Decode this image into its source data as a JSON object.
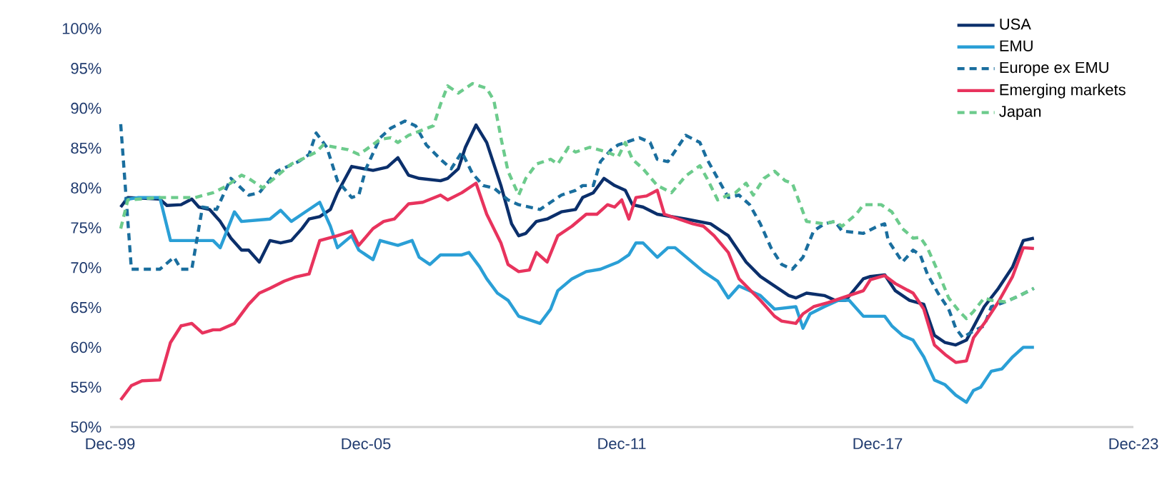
{
  "chart_data": {
    "type": "line",
    "xlim": [
      "1999-12",
      "2023-12"
    ],
    "xticks": [
      {
        "value": "1999-12",
        "label": "Dec-99"
      },
      {
        "value": "2005-12",
        "label": "Dec-05"
      },
      {
        "value": "2011-12",
        "label": "Dec-11"
      },
      {
        "value": "2017-12",
        "label": "Dec-17"
      },
      {
        "value": "2023-12",
        "label": "Dec-23"
      }
    ],
    "ylim": [
      50,
      100
    ],
    "yticks": [
      {
        "value": 50,
        "label": "50%"
      },
      {
        "value": 55,
        "label": "55%"
      },
      {
        "value": 60,
        "label": "60%"
      },
      {
        "value": 65,
        "label": "65%"
      },
      {
        "value": 70,
        "label": "70%"
      },
      {
        "value": 75,
        "label": "75%"
      },
      {
        "value": 80,
        "label": "80%"
      },
      {
        "value": 85,
        "label": "85%"
      },
      {
        "value": 90,
        "label": "90%"
      },
      {
        "value": 95,
        "label": "95%"
      },
      {
        "value": 100,
        "label": "100%"
      }
    ],
    "grid": false,
    "legend": "top right",
    "series": [
      {
        "name": "USA",
        "color": "#0b2f6b",
        "line_style": "solid",
        "x": [
          "2000-03",
          "2000-05",
          "2001-02",
          "2001-04",
          "2001-08",
          "2001-11",
          "2002-01",
          "2002-04",
          "2002-07",
          "2002-10",
          "2003-01",
          "2003-03",
          "2003-06",
          "2003-09",
          "2003-12",
          "2004-03",
          "2004-06",
          "2004-08",
          "2004-11",
          "2005-02",
          "2005-04",
          "2005-08",
          "2006-02",
          "2006-06",
          "2006-09",
          "2006-12",
          "2007-03",
          "2007-09",
          "2007-11",
          "2008-02",
          "2008-04",
          "2008-07",
          "2008-10",
          "2009-02",
          "2009-05",
          "2009-07",
          "2009-09",
          "2009-12",
          "2010-03",
          "2010-07",
          "2010-11",
          "2011-01",
          "2011-04",
          "2011-07",
          "2011-10",
          "2012-01",
          "2012-03",
          "2012-06",
          "2012-10",
          "2013-06",
          "2014-01",
          "2014-06",
          "2014-11",
          "2015-03",
          "2015-07",
          "2015-11",
          "2016-01",
          "2016-04",
          "2016-09",
          "2016-12",
          "2017-03",
          "2017-08",
          "2017-10",
          "2018-02",
          "2018-05",
          "2018-09",
          "2019-01",
          "2019-04",
          "2019-07",
          "2019-10",
          "2020-01",
          "2020-06",
          "2020-10",
          "2021-02",
          "2021-05",
          "2021-08"
        ],
        "values": [
          77.6,
          78.8,
          78.6,
          77.8,
          77.9,
          78.6,
          77.6,
          77.3,
          75.8,
          73.7,
          72.2,
          72.2,
          70.7,
          73.4,
          73.1,
          73.4,
          74.9,
          76.1,
          76.4,
          77.3,
          79.4,
          82.7,
          82.2,
          82.6,
          83.8,
          81.6,
          81.2,
          80.9,
          81.2,
          82.4,
          85.1,
          87.9,
          85.7,
          80.3,
          75.5,
          74.0,
          74.3,
          75.8,
          76.1,
          77.0,
          77.3,
          78.8,
          79.4,
          81.2,
          80.3,
          79.7,
          77.9,
          77.6,
          76.7,
          76.1,
          75.5,
          74.0,
          70.7,
          68.9,
          67.7,
          66.5,
          66.2,
          66.8,
          66.5,
          65.9,
          65.9,
          68.6,
          68.9,
          69.1,
          67.1,
          65.9,
          65.4,
          61.5,
          60.6,
          60.3,
          60.9,
          65.1,
          67.4,
          70.1,
          73.4,
          73.7
        ]
      },
      {
        "name": "EMU",
        "color": "#2a9fd6",
        "line_style": "solid",
        "x": [
          "2000-04",
          "2000-08",
          "2001-02",
          "2001-05",
          "2002-05",
          "2002-07",
          "2002-11",
          "2003-01",
          "2003-09",
          "2003-12",
          "2004-03",
          "2004-06",
          "2004-11",
          "2005-02",
          "2005-04",
          "2005-08",
          "2005-10",
          "2006-02",
          "2006-04",
          "2006-09",
          "2007-01",
          "2007-03",
          "2007-06",
          "2007-09",
          "2008-03",
          "2008-05",
          "2008-08",
          "2008-10",
          "2009-01",
          "2009-04",
          "2009-07",
          "2010-01",
          "2010-04",
          "2010-06",
          "2010-10",
          "2011-02",
          "2011-06",
          "2011-11",
          "2012-02",
          "2012-04",
          "2012-06",
          "2012-10",
          "2013-01",
          "2013-03",
          "2013-07",
          "2013-11",
          "2014-03",
          "2014-06",
          "2014-09",
          "2015-03",
          "2015-07",
          "2016-01",
          "2016-03",
          "2016-05",
          "2016-09",
          "2017-01",
          "2017-04",
          "2017-08",
          "2018-02",
          "2018-04",
          "2018-07",
          "2018-10",
          "2019-01",
          "2019-04",
          "2019-07",
          "2019-10",
          "2020-01",
          "2020-03",
          "2020-05",
          "2020-08",
          "2020-11",
          "2021-02",
          "2021-05",
          "2021-08"
        ],
        "values": [
          78.5,
          78.8,
          78.8,
          73.4,
          73.4,
          72.5,
          77.0,
          75.8,
          76.1,
          77.2,
          75.8,
          76.7,
          78.2,
          75.2,
          72.5,
          74.0,
          72.2,
          71.0,
          73.4,
          72.8,
          73.4,
          71.3,
          70.4,
          71.6,
          71.6,
          71.9,
          70.1,
          68.6,
          66.8,
          65.9,
          63.9,
          63.0,
          64.8,
          67.1,
          68.6,
          69.5,
          69.8,
          70.7,
          71.6,
          73.1,
          73.1,
          71.3,
          72.5,
          72.5,
          71.0,
          69.5,
          68.3,
          66.2,
          67.7,
          66.5,
          64.8,
          65.1,
          62.4,
          64.2,
          65.1,
          65.9,
          65.9,
          63.9,
          63.9,
          62.7,
          61.5,
          60.9,
          58.8,
          55.9,
          55.3,
          54.0,
          53.1,
          54.6,
          55.0,
          57.0,
          57.3,
          58.8,
          60.0,
          60.0
        ]
      },
      {
        "name": "Europe ex EMU",
        "color": "#1a6e9e",
        "line_style": "dashed",
        "x": [
          "2000-03",
          "2000-06",
          "2001-02",
          "2001-06",
          "2001-08",
          "2001-11",
          "2002-02",
          "2002-06",
          "2002-10",
          "2003-03",
          "2003-06",
          "2003-11",
          "2004-05",
          "2004-08",
          "2004-10",
          "2005-01",
          "2005-04",
          "2005-08",
          "2005-10",
          "2005-12",
          "2006-04",
          "2006-07",
          "2006-11",
          "2007-02",
          "2007-05",
          "2007-09",
          "2007-12",
          "2008-03",
          "2008-06",
          "2008-09",
          "2008-12",
          "2009-04",
          "2009-07",
          "2010-01",
          "2010-04",
          "2010-07",
          "2010-11",
          "2011-01",
          "2011-04",
          "2011-06",
          "2011-09",
          "2011-11",
          "2012-01",
          "2012-05",
          "2012-08",
          "2012-10",
          "2013-01",
          "2013-06",
          "2013-10",
          "2013-12",
          "2014-03",
          "2014-06",
          "2014-09",
          "2014-12",
          "2015-03",
          "2015-06",
          "2015-09",
          "2015-12",
          "2016-03",
          "2016-06",
          "2016-09",
          "2016-12",
          "2017-02",
          "2017-08",
          "2017-12",
          "2018-02",
          "2018-03",
          "2018-07",
          "2018-10",
          "2018-12",
          "2019-02",
          "2019-05",
          "2019-08",
          "2019-10",
          "2019-12",
          "2020-02",
          "2020-06",
          "2020-08",
          "2020-12",
          "2021-04",
          "2021-08"
        ],
        "values": [
          88.0,
          69.8,
          69.8,
          71.3,
          69.8,
          69.8,
          77.6,
          77.3,
          81.2,
          79.1,
          79.4,
          82.1,
          83.3,
          84.2,
          86.9,
          85.1,
          80.9,
          78.8,
          79.1,
          82.4,
          86.3,
          87.5,
          88.4,
          87.8,
          85.4,
          83.6,
          82.4,
          84.5,
          81.8,
          80.3,
          80.0,
          78.5,
          77.9,
          77.3,
          78.2,
          79.1,
          79.7,
          80.3,
          80.3,
          83.3,
          84.8,
          85.4,
          85.7,
          86.3,
          85.7,
          83.6,
          83.3,
          86.6,
          85.7,
          83.6,
          81.2,
          78.8,
          79.1,
          77.9,
          75.5,
          72.5,
          70.4,
          69.8,
          71.3,
          74.6,
          75.5,
          75.8,
          74.6,
          74.3,
          75.2,
          75.5,
          73.4,
          70.7,
          72.2,
          71.6,
          69.2,
          66.8,
          64.8,
          62.4,
          61.2,
          61.8,
          62.7,
          65.1,
          65.7,
          66.5,
          67.4
        ]
      },
      {
        "name": "Emerging markets",
        "color": "#e8335d",
        "line_style": "solid",
        "x": [
          "2000-03",
          "2000-06",
          "2000-09",
          "2001-02",
          "2001-05",
          "2001-08",
          "2001-11",
          "2002-02",
          "2002-05",
          "2002-07",
          "2002-11",
          "2003-03",
          "2003-06",
          "2003-09",
          "2004-01",
          "2004-04",
          "2004-08",
          "2004-11",
          "2005-04",
          "2005-08",
          "2005-10",
          "2006-02",
          "2006-05",
          "2006-08",
          "2006-12",
          "2007-04",
          "2007-09",
          "2007-11",
          "2008-03",
          "2008-07",
          "2008-10",
          "2009-02",
          "2009-04",
          "2009-07",
          "2009-10",
          "2009-12",
          "2010-03",
          "2010-06",
          "2010-10",
          "2011-02",
          "2011-05",
          "2011-08",
          "2011-10",
          "2011-12",
          "2012-02",
          "2012-04",
          "2012-07",
          "2012-10",
          "2012-12",
          "2013-04",
          "2013-08",
          "2013-11",
          "2014-02",
          "2014-06",
          "2014-09",
          "2015-03",
          "2015-07",
          "2015-09",
          "2016-01",
          "2016-03",
          "2016-06",
          "2016-10",
          "2017-02",
          "2017-08",
          "2017-10",
          "2018-02",
          "2018-05",
          "2018-10",
          "2019-01",
          "2019-04",
          "2019-07",
          "2019-10",
          "2020-01",
          "2020-03",
          "2020-06",
          "2020-10",
          "2021-02",
          "2021-05",
          "2021-08"
        ],
        "values": [
          53.4,
          55.2,
          55.8,
          55.9,
          60.6,
          62.7,
          63.0,
          61.8,
          62.2,
          62.2,
          63.0,
          65.4,
          66.8,
          67.4,
          68.3,
          68.8,
          69.2,
          73.4,
          74.0,
          74.6,
          72.8,
          74.9,
          75.8,
          76.1,
          78.0,
          78.2,
          79.1,
          78.5,
          79.4,
          80.6,
          76.7,
          73.1,
          70.4,
          69.5,
          69.7,
          71.9,
          70.7,
          74.0,
          75.2,
          76.7,
          76.7,
          77.9,
          77.6,
          78.5,
          76.1,
          78.8,
          79.0,
          79.7,
          76.7,
          76.1,
          75.5,
          75.2,
          74.0,
          71.9,
          68.6,
          65.9,
          63.9,
          63.3,
          63.0,
          64.2,
          65.1,
          65.6,
          66.2,
          67.1,
          68.5,
          69.0,
          68.0,
          66.8,
          64.8,
          60.3,
          59.1,
          58.1,
          58.3,
          61.2,
          63.0,
          65.7,
          68.9,
          72.5,
          72.4
        ]
      },
      {
        "name": "Japan",
        "color": "#6ccb8c",
        "line_style": "dashed",
        "x": [
          "2000-03",
          "2000-05",
          "2001-02",
          "2001-12",
          "2002-05",
          "2002-09",
          "2003-01",
          "2003-03",
          "2003-07",
          "2003-11",
          "2004-03",
          "2004-06",
          "2004-10",
          "2004-12",
          "2005-07",
          "2005-10",
          "2005-12",
          "2006-04",
          "2006-07",
          "2006-09",
          "2006-12",
          "2007-07",
          "2007-09",
          "2007-11",
          "2008-02",
          "2008-06",
          "2008-10",
          "2008-12",
          "2009-02",
          "2009-04",
          "2009-07",
          "2009-09",
          "2009-12",
          "2010-04",
          "2010-06",
          "2010-09",
          "2010-11",
          "2011-03",
          "2011-08",
          "2011-11",
          "2012-01",
          "2012-03",
          "2012-06",
          "2012-10",
          "2013-02",
          "2013-06",
          "2013-10",
          "2013-12",
          "2014-03",
          "2014-06",
          "2014-08",
          "2014-11",
          "2015-01",
          "2015-04",
          "2015-07",
          "2015-10",
          "2015-12",
          "2016-04",
          "2016-09",
          "2016-12",
          "2017-02",
          "2017-06",
          "2017-08",
          "2018-01",
          "2018-04",
          "2018-07",
          "2018-10",
          "2018-12",
          "2019-02",
          "2019-05",
          "2019-08",
          "2019-11",
          "2020-01",
          "2020-03",
          "2020-06",
          "2020-08",
          "2020-12",
          "2021-04",
          "2021-08"
        ],
        "values": [
          74.9,
          78.5,
          78.8,
          78.8,
          79.4,
          80.3,
          81.6,
          81.2,
          80.0,
          81.5,
          83.0,
          83.6,
          84.5,
          85.4,
          84.8,
          84.2,
          84.8,
          86.1,
          86.3,
          85.7,
          86.6,
          87.8,
          90.5,
          92.8,
          91.9,
          93.1,
          92.5,
          91.0,
          86.3,
          82.1,
          79.1,
          81.2,
          83.0,
          83.6,
          83.0,
          85.1,
          84.5,
          85.1,
          84.5,
          83.9,
          85.7,
          83.6,
          82.4,
          80.3,
          79.4,
          81.5,
          82.8,
          81.2,
          78.5,
          79.1,
          79.4,
          80.6,
          79.1,
          81.2,
          82.1,
          80.9,
          80.6,
          75.8,
          75.5,
          75.8,
          75.2,
          76.7,
          77.9,
          77.9,
          77.0,
          74.9,
          73.7,
          73.8,
          72.5,
          69.5,
          66.2,
          64.5,
          63.6,
          64.5,
          66.2,
          65.9,
          65.7,
          66.5,
          67.4
        ]
      }
    ]
  }
}
